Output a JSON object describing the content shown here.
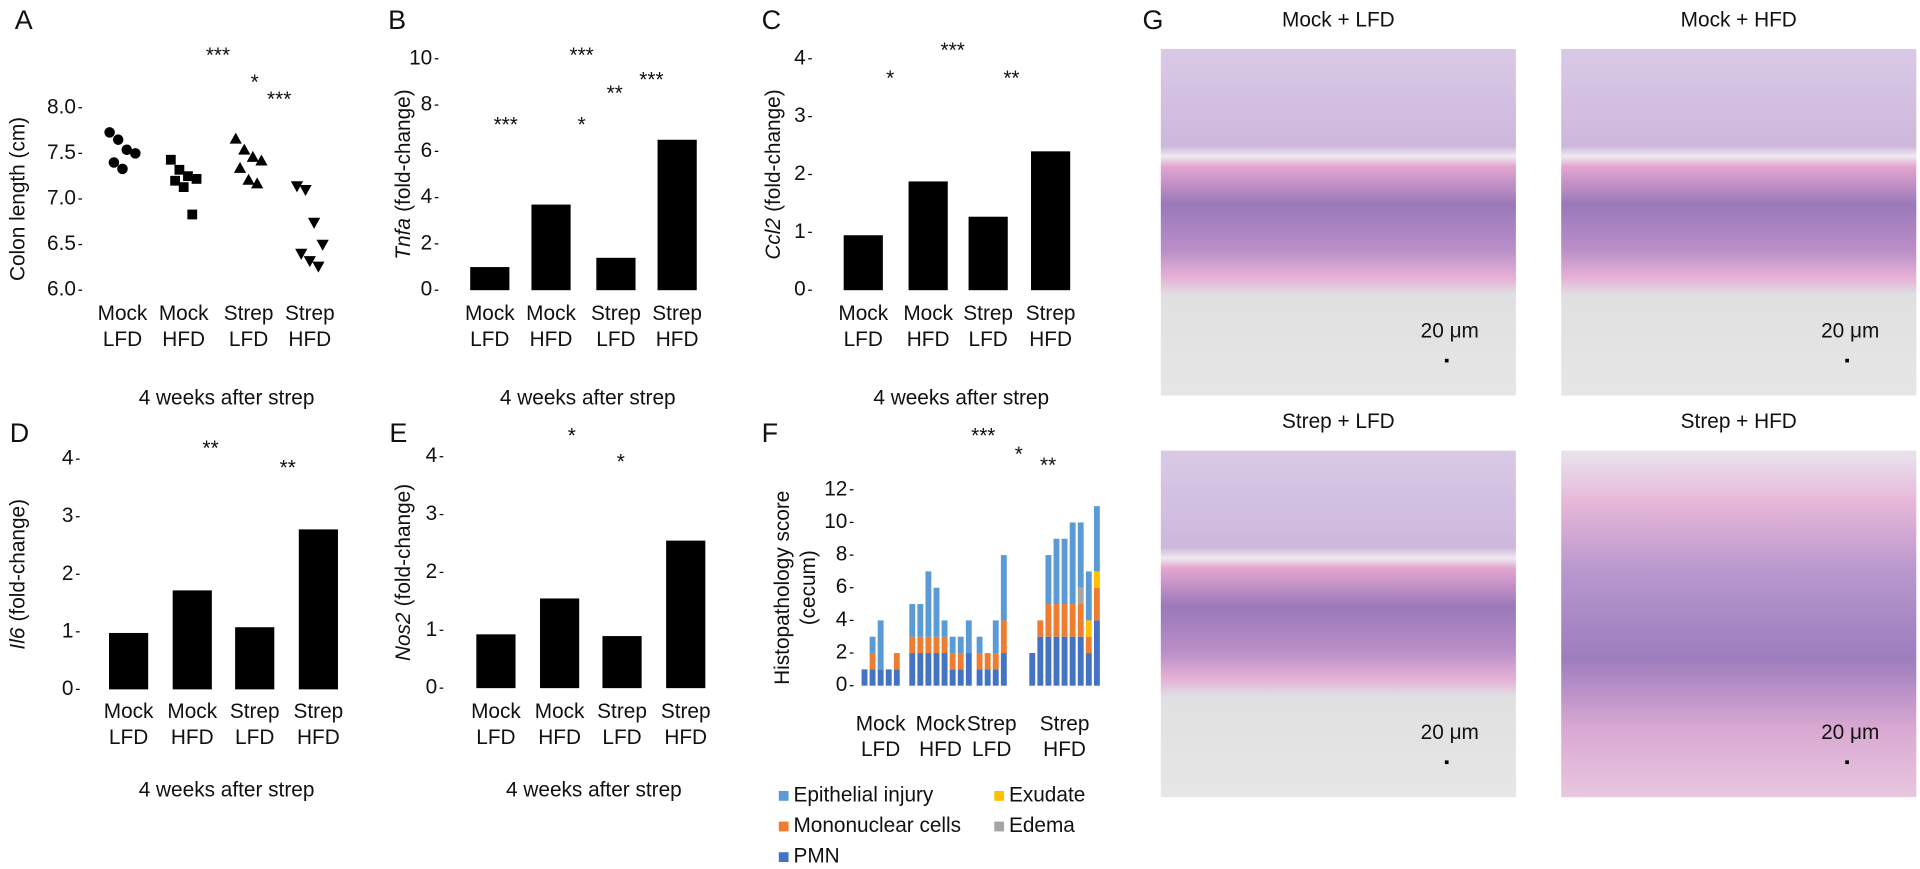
{
  "chart_data": [
    {
      "type": "dot",
      "panel": "A",
      "ylabel": "Colon length (cm)",
      "color": "#000000",
      "ylim": [
        6,
        8
      ],
      "yticks": [
        {
          "value": 6,
          "label": "6.0"
        },
        6.5,
        {
          "value": 7,
          "label": "7.0"
        },
        7.5,
        {
          "value": 8,
          "label": "8.0"
        }
      ],
      "categories": [
        [
          "Mock",
          "LFD"
        ],
        [
          "Mock",
          "HFD"
        ],
        [
          "Strep",
          "LFD"
        ],
        [
          "Strep",
          "HFD"
        ]
      ],
      "markers": [
        "circle",
        "square",
        "triangle",
        "triangle-down"
      ],
      "values": [
        [
          7.73,
          7.65,
          7.54,
          7.5,
          7.4,
          7.33
        ],
        [
          7.43,
          7.32,
          7.25,
          7.22,
          7.2,
          7.13,
          6.83
        ],
        [
          7.66,
          7.54,
          7.46,
          7.42,
          7.34,
          7.21,
          7.17
        ],
        [
          7.14,
          7.1,
          6.74,
          6.5,
          6.4,
          6.32,
          6.26
        ]
      ],
      "xlabel": "4 weeks after strep",
      "annotations": [
        "***",
        "*",
        "***"
      ]
    },
    {
      "type": "bar",
      "panel": "B",
      "ylabel_gene": "Tnfa",
      "ylabel": "(fold-change)",
      "color": "#000000",
      "ylim": [
        0,
        10
      ],
      "yticks": [
        0,
        2,
        4,
        6,
        8,
        10
      ],
      "categories": [
        [
          "Mock",
          "LFD"
        ],
        [
          "Mock",
          "HFD"
        ],
        [
          "Strep",
          "LFD"
        ],
        [
          "Strep",
          "HFD"
        ]
      ],
      "values": [
        1.0,
        3.7,
        1.4,
        6.5
      ],
      "xlabel": "4 weeks after strep",
      "annotations": [
        "***",
        "***",
        "*",
        "**",
        "***"
      ]
    },
    {
      "type": "bar",
      "panel": "C",
      "ylabel_gene": "Ccl2",
      "ylabel": "(fold-change)",
      "color": "#000000",
      "ylim": [
        0,
        4
      ],
      "yticks": [
        0,
        1,
        2,
        3,
        4
      ],
      "categories": [
        [
          "Mock",
          "LFD"
        ],
        [
          "Mock",
          "HFD"
        ],
        [
          "Strep",
          "LFD"
        ],
        [
          "Strep",
          "HFD"
        ]
      ],
      "values": [
        0.95,
        1.88,
        1.27,
        2.4
      ],
      "xlabel": "4 weeks after strep",
      "annotations": [
        "*",
        "***",
        "**"
      ]
    },
    {
      "type": "bar",
      "panel": "D",
      "ylabel_gene": "Il6",
      "ylabel": "(fold-change)",
      "color": "#000000",
      "ylim": [
        0,
        4
      ],
      "yticks": [
        0,
        1,
        2,
        3,
        4
      ],
      "categories": [
        [
          "Mock",
          "LFD"
        ],
        [
          "Mock",
          "HFD"
        ],
        [
          "Strep",
          "LFD"
        ],
        [
          "Strep",
          "HFD"
        ]
      ],
      "values": [
        0.98,
        1.72,
        1.08,
        2.78
      ],
      "xlabel": "4 weeks after strep",
      "annotations": [
        "**",
        "**"
      ]
    },
    {
      "type": "bar",
      "panel": "E",
      "ylabel_gene": "Nos2",
      "ylabel": "(fold-change)",
      "color": "#000000",
      "ylim": [
        0,
        4
      ],
      "yticks": [
        0,
        1,
        2,
        3,
        4
      ],
      "categories": [
        [
          "Mock",
          "LFD"
        ],
        [
          "Mock",
          "HFD"
        ],
        [
          "Strep",
          "LFD"
        ],
        [
          "Strep",
          "HFD"
        ]
      ],
      "values": [
        0.93,
        1.55,
        0.9,
        2.55
      ],
      "xlabel": "4 weeks after strep",
      "annotations": [
        "*",
        "*"
      ]
    },
    {
      "type": "stacked-bar",
      "panel": "F",
      "ylabel": [
        "Histopathology score",
        "(cecum)"
      ],
      "ylim": [
        0,
        12
      ],
      "yticks": [
        0,
        2,
        4,
        6,
        8,
        10,
        12
      ],
      "series": [
        {
          "name": "PMN",
          "color": "#4472c4"
        },
        {
          "name": "Mononuclear cells",
          "color": "#ed7d31"
        },
        {
          "name": "Edema",
          "color": "#a5a5a5"
        },
        {
          "name": "Exudate",
          "color": "#ffc000"
        },
        {
          "name": "Epithelial injury",
          "color": "#5b9bd5"
        }
      ],
      "groups": [
        {
          "label": [
            "Mock",
            "LFD"
          ],
          "values": [
            [
              1,
              1,
              1,
              1,
              1
            ],
            [
              0,
              1,
              0,
              0,
              1
            ],
            [
              0,
              0,
              0,
              0,
              0
            ],
            [
              0,
              0,
              0,
              0,
              0
            ],
            [
              0,
              1,
              3,
              0,
              0
            ]
          ]
        },
        {
          "label": [
            "Mock",
            "HFD"
          ],
          "values": [
            [
              2,
              2,
              2,
              2,
              2,
              1,
              1,
              2
            ],
            [
              1,
              1,
              1,
              1,
              1,
              1,
              1,
              0
            ],
            [
              0,
              0,
              0,
              0,
              0,
              0,
              0,
              0
            ],
            [
              0,
              0,
              0,
              0,
              0,
              0,
              0,
              0
            ],
            [
              2,
              2,
              4,
              3,
              1,
              1,
              1,
              2
            ]
          ]
        },
        {
          "label": [
            "Strep",
            "LFD"
          ],
          "values": [
            [
              1,
              1,
              1,
              2
            ],
            [
              1,
              1,
              1,
              2
            ],
            [
              0,
              0,
              0,
              0
            ],
            [
              0,
              0,
              0,
              0
            ],
            [
              1,
              0,
              2,
              4
            ]
          ]
        },
        {
          "label": [
            "Strep",
            "HFD"
          ],
          "values": [
            [
              2,
              3,
              3,
              3,
              3,
              3,
              3,
              2,
              4
            ],
            [
              0,
              1,
              2,
              2,
              2,
              2,
              2,
              1,
              2
            ],
            [
              0,
              0,
              0,
              0,
              0,
              0,
              1,
              0,
              0
            ],
            [
              0,
              0,
              0,
              0,
              0,
              0,
              0,
              1,
              1
            ],
            [
              0,
              0,
              3,
              4,
              4,
              5,
              4,
              3,
              4
            ]
          ]
        }
      ],
      "annotations": [
        "***",
        "*",
        "**"
      ]
    }
  ],
  "panel_g": {
    "panel": "G",
    "images": [
      {
        "title": "Mock + LFD",
        "scale": "20 μm"
      },
      {
        "title": "Mock + HFD",
        "scale": "20 μm"
      },
      {
        "title": "Strep + LFD",
        "scale": "20 μm"
      },
      {
        "title": "Strep + HFD",
        "scale": "20 μm"
      }
    ]
  }
}
